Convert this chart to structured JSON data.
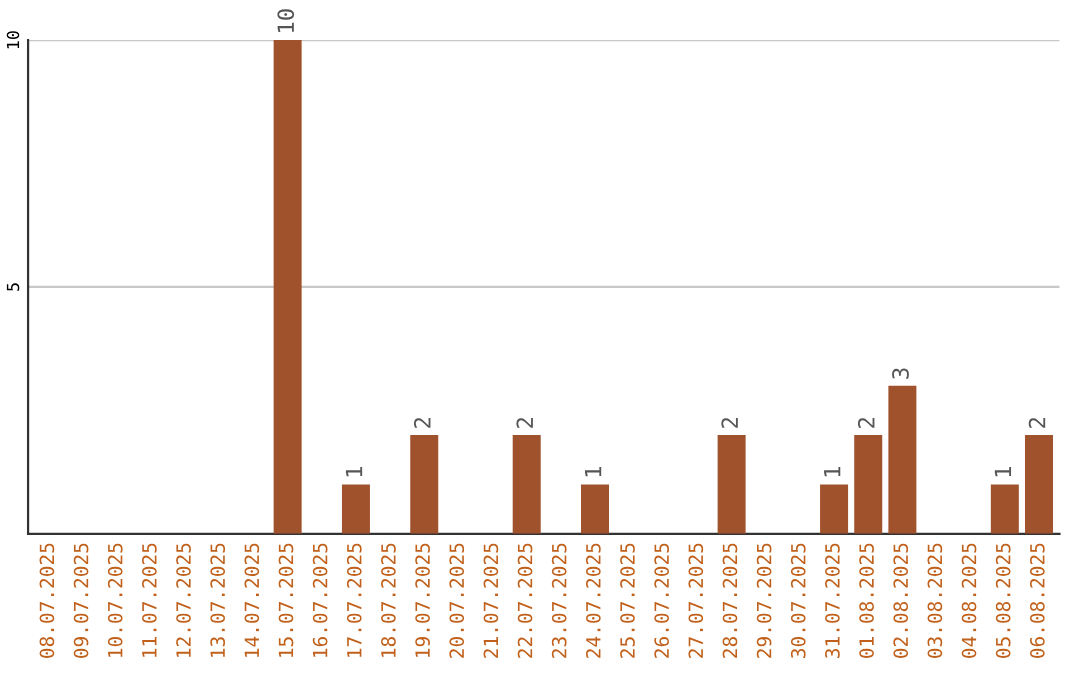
{
  "chart_data": {
    "type": "bar",
    "categories": [
      "08.07.2025",
      "09.07.2025",
      "10.07.2025",
      "11.07.2025",
      "12.07.2025",
      "13.07.2025",
      "14.07.2025",
      "15.07.2025",
      "16.07.2025",
      "17.07.2025",
      "18.07.2025",
      "19.07.2025",
      "20.07.2025",
      "21.07.2025",
      "22.07.2025",
      "23.07.2025",
      "24.07.2025",
      "25.07.2025",
      "26.07.2025",
      "27.07.2025",
      "28.07.2025",
      "29.07.2025",
      "30.07.2025",
      "31.07.2025",
      "01.08.2025",
      "02.08.2025",
      "03.08.2025",
      "04.08.2025",
      "05.08.2025",
      "06.08.2025"
    ],
    "values": [
      0,
      0,
      0,
      0,
      0,
      0,
      0,
      10,
      0,
      1,
      0,
      2,
      0,
      0,
      2,
      0,
      1,
      0,
      0,
      0,
      2,
      0,
      0,
      1,
      2,
      3,
      0,
      0,
      1,
      2
    ],
    "value_labels": [
      null,
      null,
      null,
      null,
      null,
      null,
      null,
      "10",
      null,
      "1",
      null,
      "2",
      null,
      null,
      "2",
      null,
      "1",
      null,
      null,
      null,
      "2",
      null,
      null,
      "1",
      "2",
      "3",
      null,
      null,
      "1",
      "2"
    ],
    "color": "#a0522d",
    "ylim": [
      0,
      10
    ],
    "yticks": [
      5,
      10
    ],
    "grid": "y",
    "legend": false
  }
}
